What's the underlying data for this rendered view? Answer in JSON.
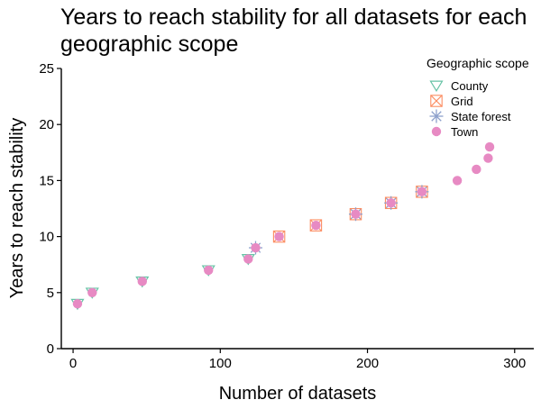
{
  "chart_data": {
    "type": "scatter",
    "title": "Years to reach stability for all datasets for each geographic scope",
    "xlabel": "Number of datasets",
    "ylabel": "Years to reach stability",
    "xlim": [
      -8,
      313
    ],
    "ylim": [
      0,
      25
    ],
    "x_ticks": [
      0,
      100,
      200,
      300
    ],
    "y_ticks": [
      0,
      5,
      10,
      15,
      20,
      25
    ],
    "grid": false,
    "legend": {
      "title": "Geographic scope",
      "position": "top-right",
      "entries": [
        "County",
        "Grid",
        "State forest",
        "Town"
      ]
    },
    "series": [
      {
        "name": "County",
        "marker": "triangle-down",
        "color": "#66c2a5",
        "points": [
          [
            3,
            4
          ],
          [
            13,
            5
          ],
          [
            47,
            6
          ],
          [
            92,
            7
          ],
          [
            119,
            8
          ]
        ]
      },
      {
        "name": "Grid",
        "marker": "square-cross",
        "color": "#fc8d62",
        "points": [
          [
            140,
            10
          ],
          [
            165,
            11
          ],
          [
            192,
            12
          ],
          [
            216,
            13
          ],
          [
            237,
            14
          ]
        ]
      },
      {
        "name": "State forest",
        "marker": "asterisk",
        "color": "#8da0cb",
        "points": [
          [
            124,
            9
          ],
          [
            192,
            12
          ],
          [
            216,
            13
          ],
          [
            237,
            14
          ]
        ]
      },
      {
        "name": "Town",
        "marker": "circle",
        "color": "#e78ac3",
        "points": [
          [
            3,
            4
          ],
          [
            13,
            5
          ],
          [
            47,
            6
          ],
          [
            92,
            7
          ],
          [
            119,
            8
          ],
          [
            124,
            9
          ],
          [
            140,
            10
          ],
          [
            165,
            11
          ],
          [
            192,
            12
          ],
          [
            216,
            13
          ],
          [
            237,
            14
          ],
          [
            261,
            15
          ],
          [
            274,
            16
          ],
          [
            282,
            17
          ],
          [
            283,
            18
          ]
        ]
      }
    ]
  }
}
